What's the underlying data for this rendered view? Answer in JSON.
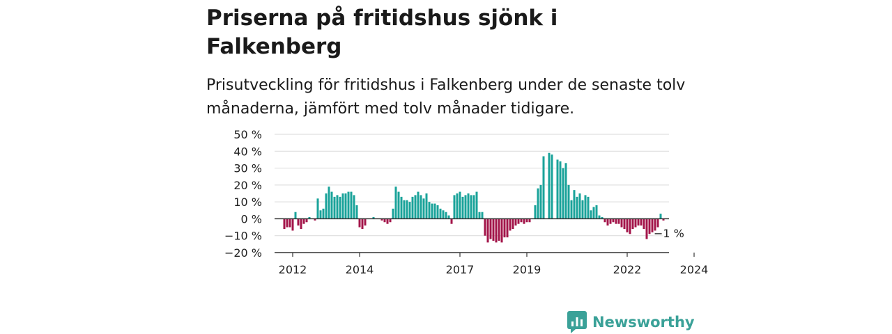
{
  "title": "Priserna på fritidshus sjönk i Falkenberg",
  "subtitle": "Prisutveckling för fritidshus i Falkenberg under de senaste tolv månaderna, jämfört med tolv månader tidigare.",
  "brand": {
    "name": "Newsworthy",
    "icon": "newsworthy-logo-icon",
    "color": "#3aa198"
  },
  "chart_data": {
    "type": "bar",
    "title": "Priserna på fritidshus sjönk i Falkenberg",
    "ylim": [
      -20,
      50
    ],
    "yticks": [
      50,
      40,
      30,
      20,
      10,
      0,
      -10,
      -20
    ],
    "ytick_labels": [
      "50 %",
      "40 %",
      "30 %",
      "20 %",
      "10 %",
      "0 %",
      "−10 %",
      "−20 %"
    ],
    "xticks": [
      2012,
      2014,
      2017,
      2019,
      2022,
      2024
    ],
    "xtick_labels": [
      "2012",
      "2014",
      "2017",
      "2019",
      "2022",
      "2024"
    ],
    "grid": true,
    "positive_color": "#1aa39a",
    "negative_color": "#a3154a",
    "last_value_label": "−1 %",
    "last_value": -1,
    "start_month": "2011-10",
    "values": [
      -6,
      -5,
      -5,
      -7,
      4,
      -4,
      -6,
      -3,
      -2,
      1,
      0,
      -1,
      12,
      5,
      6,
      15,
      19,
      16,
      13,
      14,
      13,
      15,
      15,
      16,
      16,
      14,
      8,
      -5,
      -6,
      -4,
      0,
      0,
      1,
      0,
      0,
      -1,
      -2,
      -3,
      -2,
      6,
      19,
      16,
      13,
      11,
      11,
      10,
      13,
      14,
      16,
      14,
      12,
      15,
      10,
      9,
      9,
      8,
      6,
      5,
      4,
      2,
      -3,
      14,
      15,
      16,
      13,
      14,
      15,
      14,
      14,
      16,
      4,
      4,
      -10,
      -14,
      -12,
      -13,
      -14,
      -13,
      -14,
      -11,
      -11,
      -7,
      -6,
      -4,
      -3,
      -2,
      -3,
      -2,
      -2,
      0,
      8,
      18,
      20,
      37,
      0,
      39,
      38,
      0,
      35,
      34,
      30,
      33,
      20,
      11,
      17,
      13,
      15,
      11,
      14,
      13,
      5,
      7,
      8,
      2,
      1,
      -2,
      -4,
      -3,
      -2,
      -3,
      -3,
      -5,
      -6,
      -8,
      -9,
      -6,
      -5,
      -4,
      -4,
      -6,
      -12,
      -9,
      -8,
      -7,
      -5,
      3,
      -1
    ]
  }
}
